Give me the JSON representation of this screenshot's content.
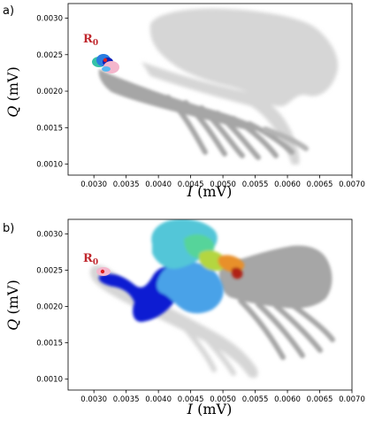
{
  "chart_data": [
    {
      "panel_label": "a)",
      "type": "scatter",
      "xlabel_var": "I",
      "xlabel_unit": "(mV)",
      "ylabel_var": "Q",
      "ylabel_unit": "(mV)",
      "xlim": [
        0.0026,
        0.007
      ],
      "ylim": [
        0.00085,
        0.0032
      ],
      "xticks": [
        "0.0030",
        "0.0035",
        "0.0040",
        "0.0045",
        "0.0050",
        "0.0055",
        "0.0060",
        "0.0065",
        "0.0070"
      ],
      "yticks": [
        "0.0010",
        "0.0015",
        "0.0020",
        "0.0025",
        "0.0030"
      ],
      "annotation": {
        "main": "R",
        "sub": "0",
        "x": 0.00296,
        "y": 0.00264
      },
      "marker": {
        "x": 0.00312,
        "y": 0.00247
      }
    },
    {
      "panel_label": "b)",
      "type": "scatter",
      "xlabel_var": "I",
      "xlabel_unit": "(mV)",
      "ylabel_var": "Q",
      "ylabel_unit": "(mV)",
      "xlim": [
        0.0026,
        0.007
      ],
      "ylim": [
        0.00085,
        0.0032
      ],
      "xticks": [
        "0.0030",
        "0.0035",
        "0.0040",
        "0.0045",
        "0.0050",
        "0.0055",
        "0.0060",
        "0.0065",
        "0.0070"
      ],
      "yticks": [
        "0.0010",
        "0.0015",
        "0.0020",
        "0.0025",
        "0.0030"
      ],
      "annotation": {
        "main": "R",
        "sub": "0",
        "x": 0.00296,
        "y": 0.00262
      },
      "marker": {
        "x": 0.00312,
        "y": 0.00247
      }
    }
  ]
}
